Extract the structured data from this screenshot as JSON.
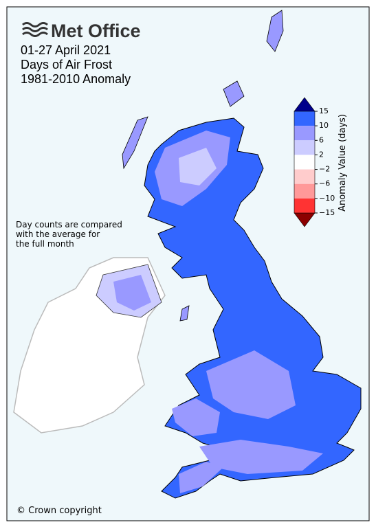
{
  "header": {
    "logo": "Met Office",
    "title_lines": [
      "01-27 April 2021",
      "Days of Air Frost",
      "1981-2010 Anomaly"
    ]
  },
  "note_lines": [
    "Day counts are compared",
    "with the average for",
    "the full month"
  ],
  "copyright": "© Crown copyright",
  "colorbar": {
    "label": "Anomaly Value (days)",
    "ticks": [
      15,
      10,
      6,
      2,
      {
        "value": -2,
        "label": "−2"
      },
      {
        "value": -6,
        "label": "−6"
      },
      {
        "value": -10,
        "label": "−10"
      },
      {
        "value": -15,
        "label": "−15"
      }
    ],
    "segment_colors": [
      "#3366ff",
      "#9999ff",
      "#ccccff",
      "#ffffff",
      "#ffcccc",
      "#ff9999",
      "#ff3333"
    ],
    "over_color": "#00008b",
    "under_color": "#8b0000"
  }
}
